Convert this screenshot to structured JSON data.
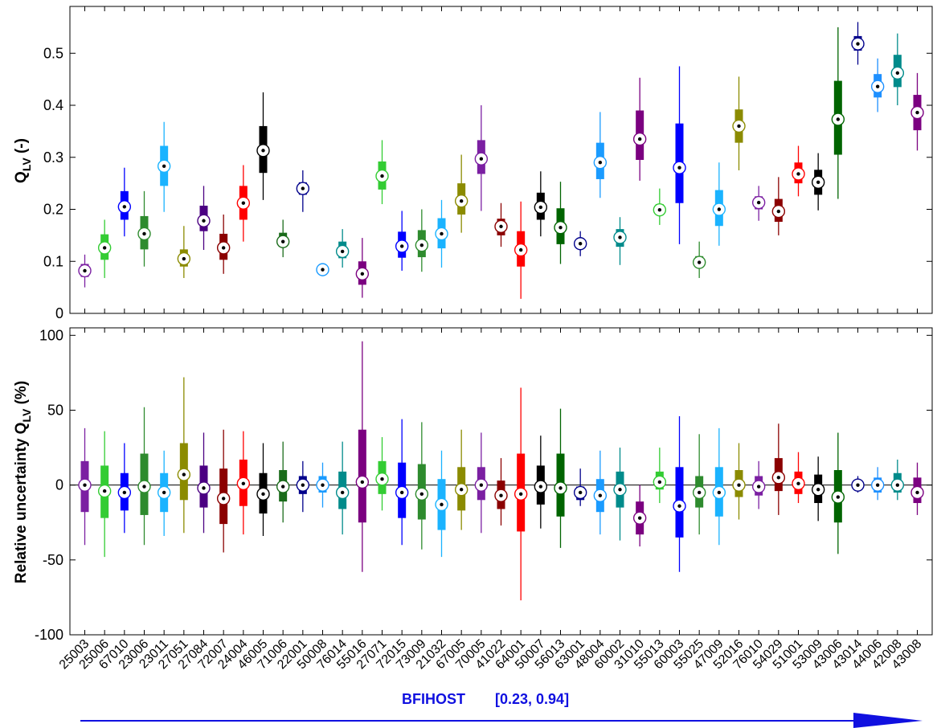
{
  "chart_data": [
    {
      "type": "box",
      "ylabel_main": "Q",
      "ylabel_sub": "LV",
      "ylabel_suffix": " (-)",
      "ylim": [
        0,
        0.59
      ],
      "yticks": [
        0,
        0.1,
        0.2,
        0.3,
        0.4,
        0.5
      ],
      "ytick_labels": [
        "0",
        "0.1",
        "0.2",
        "0.3",
        "0.4",
        "0.5"
      ],
      "grid": false,
      "items": [
        {
          "w_lo": 0.05,
          "q1": 0.07,
          "med": 0.082,
          "q3": 0.095,
          "w_hi": 0.113
        },
        {
          "w_lo": 0.068,
          "q1": 0.103,
          "med": 0.126,
          "q3": 0.152,
          "w_hi": 0.18
        },
        {
          "w_lo": 0.148,
          "q1": 0.18,
          "med": 0.205,
          "q3": 0.235,
          "w_hi": 0.28
        },
        {
          "w_lo": 0.09,
          "q1": 0.123,
          "med": 0.153,
          "q3": 0.187,
          "w_hi": 0.235
        },
        {
          "w_lo": 0.195,
          "q1": 0.245,
          "med": 0.283,
          "q3": 0.322,
          "w_hi": 0.368
        },
        {
          "w_lo": 0.068,
          "q1": 0.09,
          "med": 0.105,
          "q3": 0.123,
          "w_hi": 0.168
        },
        {
          "w_lo": 0.122,
          "q1": 0.158,
          "med": 0.178,
          "q3": 0.207,
          "w_hi": 0.245
        },
        {
          "w_lo": 0.076,
          "q1": 0.103,
          "med": 0.126,
          "q3": 0.153,
          "w_hi": 0.19
        },
        {
          "w_lo": 0.138,
          "q1": 0.18,
          "med": 0.212,
          "q3": 0.245,
          "w_hi": 0.285
        },
        {
          "w_lo": 0.218,
          "q1": 0.27,
          "med": 0.313,
          "q3": 0.36,
          "w_hi": 0.425
        },
        {
          "w_lo": 0.108,
          "q1": 0.128,
          "med": 0.138,
          "q3": 0.155,
          "w_hi": 0.18
        },
        {
          "w_lo": 0.195,
          "q1": 0.228,
          "med": 0.24,
          "q3": 0.252,
          "w_hi": 0.275
        },
        {
          "w_lo": 0.076,
          "q1": 0.08,
          "med": 0.084,
          "q3": 0.088,
          "w_hi": 0.092
        },
        {
          "w_lo": 0.088,
          "q1": 0.106,
          "med": 0.119,
          "q3": 0.138,
          "w_hi": 0.162
        },
        {
          "w_lo": 0.03,
          "q1": 0.055,
          "med": 0.076,
          "q3": 0.1,
          "w_hi": 0.145
        },
        {
          "w_lo": 0.21,
          "q1": 0.238,
          "med": 0.264,
          "q3": 0.292,
          "w_hi": 0.333
        },
        {
          "w_lo": 0.082,
          "q1": 0.107,
          "med": 0.129,
          "q3": 0.157,
          "w_hi": 0.197
        },
        {
          "w_lo": 0.08,
          "q1": 0.108,
          "med": 0.131,
          "q3": 0.16,
          "w_hi": 0.2
        },
        {
          "w_lo": 0.088,
          "q1": 0.125,
          "med": 0.153,
          "q3": 0.183,
          "w_hi": 0.218
        },
        {
          "w_lo": 0.155,
          "q1": 0.19,
          "med": 0.216,
          "q3": 0.25,
          "w_hi": 0.305
        },
        {
          "w_lo": 0.197,
          "q1": 0.268,
          "med": 0.297,
          "q3": 0.333,
          "w_hi": 0.4
        },
        {
          "w_lo": 0.128,
          "q1": 0.15,
          "med": 0.167,
          "q3": 0.182,
          "w_hi": 0.212
        },
        {
          "w_lo": 0.028,
          "q1": 0.09,
          "med": 0.122,
          "q3": 0.158,
          "w_hi": 0.215
        },
        {
          "w_lo": 0.148,
          "q1": 0.18,
          "med": 0.204,
          "q3": 0.232,
          "w_hi": 0.273
        },
        {
          "w_lo": 0.095,
          "q1": 0.133,
          "med": 0.165,
          "q3": 0.202,
          "w_hi": 0.253
        },
        {
          "w_lo": 0.11,
          "q1": 0.125,
          "med": 0.134,
          "q3": 0.142,
          "w_hi": 0.158
        },
        {
          "w_lo": 0.222,
          "q1": 0.258,
          "med": 0.29,
          "q3": 0.328,
          "w_hi": 0.387
        },
        {
          "w_lo": 0.093,
          "q1": 0.128,
          "med": 0.146,
          "q3": 0.162,
          "w_hi": 0.185
        },
        {
          "w_lo": 0.255,
          "q1": 0.295,
          "med": 0.335,
          "q3": 0.39,
          "w_hi": 0.453
        },
        {
          "w_lo": 0.17,
          "q1": 0.19,
          "med": 0.199,
          "q3": 0.21,
          "w_hi": 0.24
        },
        {
          "w_lo": 0.133,
          "q1": 0.212,
          "med": 0.28,
          "q3": 0.365,
          "w_hi": 0.475
        },
        {
          "w_lo": 0.068,
          "q1": 0.09,
          "med": 0.098,
          "q3": 0.11,
          "w_hi": 0.138
        },
        {
          "w_lo": 0.13,
          "q1": 0.168,
          "med": 0.2,
          "q3": 0.237,
          "w_hi": 0.29
        },
        {
          "w_lo": 0.275,
          "q1": 0.328,
          "med": 0.36,
          "q3": 0.392,
          "w_hi": 0.455
        },
        {
          "w_lo": 0.178,
          "q1": 0.2,
          "med": 0.213,
          "q3": 0.225,
          "w_hi": 0.245
        },
        {
          "w_lo": 0.15,
          "q1": 0.176,
          "med": 0.196,
          "q3": 0.22,
          "w_hi": 0.262
        },
        {
          "w_lo": 0.225,
          "q1": 0.25,
          "med": 0.268,
          "q3": 0.29,
          "w_hi": 0.322
        },
        {
          "w_lo": 0.198,
          "q1": 0.228,
          "med": 0.252,
          "q3": 0.276,
          "w_hi": 0.308
        },
        {
          "w_lo": 0.22,
          "q1": 0.305,
          "med": 0.373,
          "q3": 0.447,
          "w_hi": 0.55
        },
        {
          "w_lo": 0.478,
          "q1": 0.505,
          "med": 0.518,
          "q3": 0.533,
          "w_hi": 0.56
        },
        {
          "w_lo": 0.387,
          "q1": 0.415,
          "med": 0.436,
          "q3": 0.46,
          "w_hi": 0.49
        },
        {
          "w_lo": 0.4,
          "q1": 0.435,
          "med": 0.462,
          "q3": 0.497,
          "w_hi": 0.538
        },
        {
          "w_lo": 0.313,
          "q1": 0.352,
          "med": 0.386,
          "q3": 0.42,
          "w_hi": 0.462
        }
      ]
    },
    {
      "type": "box",
      "ylabel_main": "Relative uncertainty Q",
      "ylabel_sub": "LV",
      "ylabel_suffix": " (%)",
      "ylim": [
        -100,
        105
      ],
      "yticks": [
        -100,
        -50,
        0,
        50,
        100
      ],
      "ytick_labels": [
        "-100",
        "-50",
        "0",
        "50",
        "100"
      ],
      "zero_line": true,
      "grid": false,
      "items": [
        {
          "w_lo": -40,
          "q1": -18,
          "med": 0,
          "q3": 16,
          "w_hi": 38
        },
        {
          "w_lo": -48,
          "q1": -22,
          "med": -4,
          "q3": 13,
          "w_hi": 36
        },
        {
          "w_lo": -32,
          "q1": -17,
          "med": -5,
          "q3": 8,
          "w_hi": 28
        },
        {
          "w_lo": -40,
          "q1": -20,
          "med": -1,
          "q3": 21,
          "w_hi": 52
        },
        {
          "w_lo": -34,
          "q1": -18,
          "med": -5,
          "q3": 8,
          "w_hi": 23
        },
        {
          "w_lo": -32,
          "q1": -10,
          "med": 7,
          "q3": 28,
          "w_hi": 72
        },
        {
          "w_lo": -32,
          "q1": -15,
          "med": -2,
          "q3": 13,
          "w_hi": 35
        },
        {
          "w_lo": -45,
          "q1": -26,
          "med": -9,
          "q3": 11,
          "w_hi": 37
        },
        {
          "w_lo": -33,
          "q1": -14,
          "med": 1,
          "q3": 17,
          "w_hi": 36
        },
        {
          "w_lo": -34,
          "q1": -19,
          "med": -6,
          "q3": 8,
          "w_hi": 28
        },
        {
          "w_lo": -25,
          "q1": -11,
          "med": -1,
          "q3": 10,
          "w_hi": 29
        },
        {
          "w_lo": -18,
          "q1": -6,
          "med": 0,
          "q3": 6,
          "w_hi": 16
        },
        {
          "w_lo": -15,
          "q1": -5,
          "med": 0,
          "q3": 6,
          "w_hi": 15
        },
        {
          "w_lo": -33,
          "q1": -16,
          "med": -5,
          "q3": 9,
          "w_hi": 29
        },
        {
          "w_lo": -58,
          "q1": -25,
          "med": 2,
          "q3": 37,
          "w_hi": 96
        },
        {
          "w_lo": -17,
          "q1": -6,
          "med": 4,
          "q3": 16,
          "w_hi": 32
        },
        {
          "w_lo": -40,
          "q1": -22,
          "med": -5,
          "q3": 15,
          "w_hi": 44
        },
        {
          "w_lo": -43,
          "q1": -23,
          "med": -6,
          "q3": 14,
          "w_hi": 42
        },
        {
          "w_lo": -48,
          "q1": -30,
          "med": -13,
          "q3": 4,
          "w_hi": 23
        },
        {
          "w_lo": -30,
          "q1": -17,
          "med": -3,
          "q3": 12,
          "w_hi": 37
        },
        {
          "w_lo": -32,
          "q1": -10,
          "med": 0,
          "q3": 12,
          "w_hi": 35
        },
        {
          "w_lo": -27,
          "q1": -16,
          "med": -7,
          "q3": 3,
          "w_hi": 18
        },
        {
          "w_lo": -77,
          "q1": -31,
          "med": -6,
          "q3": 21,
          "w_hi": 65
        },
        {
          "w_lo": -29,
          "q1": -13,
          "med": -1,
          "q3": 13,
          "w_hi": 33
        },
        {
          "w_lo": -42,
          "q1": -21,
          "med": -2,
          "q3": 21,
          "w_hi": 51
        },
        {
          "w_lo": -14,
          "q1": -10,
          "med": -5,
          "q3": -1,
          "w_hi": 11
        },
        {
          "w_lo": -33,
          "q1": -18,
          "med": -7,
          "q3": 4,
          "w_hi": 23
        },
        {
          "w_lo": -37,
          "q1": -15,
          "med": -3,
          "q3": 9,
          "w_hi": 25
        },
        {
          "w_lo": -41,
          "q1": -33,
          "med": -22,
          "q3": -11,
          "w_hi": 0
        },
        {
          "w_lo": -12,
          "q1": -3,
          "med": 2,
          "q3": 9,
          "w_hi": 25
        },
        {
          "w_lo": -58,
          "q1": -35,
          "med": -14,
          "q3": 12,
          "w_hi": 46
        },
        {
          "w_lo": -33,
          "q1": -15,
          "med": -5,
          "q3": 6,
          "w_hi": 34
        },
        {
          "w_lo": -40,
          "q1": -21,
          "med": -5,
          "q3": 12,
          "w_hi": 38
        },
        {
          "w_lo": -23,
          "q1": -8,
          "med": 0,
          "q3": 10,
          "w_hi": 28
        },
        {
          "w_lo": -16,
          "q1": -7,
          "med": -1,
          "q3": 6,
          "w_hi": 16
        },
        {
          "w_lo": -20,
          "q1": -4,
          "med": 5,
          "q3": 18,
          "w_hi": 41
        },
        {
          "w_lo": -12,
          "q1": -6,
          "med": 1,
          "q3": 9,
          "w_hi": 22
        },
        {
          "w_lo": -24,
          "q1": -12,
          "med": -3,
          "q3": 7,
          "w_hi": 19
        },
        {
          "w_lo": -46,
          "q1": -25,
          "med": -8,
          "q3": 10,
          "w_hi": 35
        },
        {
          "w_lo": -5,
          "q1": -2,
          "med": 0,
          "q3": 2,
          "w_hi": 6
        },
        {
          "w_lo": -10,
          "q1": -5,
          "med": 0,
          "q3": 5,
          "w_hi": 12
        },
        {
          "w_lo": -10,
          "q1": -5,
          "med": 0,
          "q3": 8,
          "w_hi": 17
        },
        {
          "w_lo": -20,
          "q1": -12,
          "med": -5,
          "q3": 5,
          "w_hi": 15
        }
      ]
    }
  ],
  "categories": [
    "25003",
    "25006",
    "67010",
    "23006",
    "23011",
    "27051",
    "27084",
    "72007",
    "24004",
    "46005",
    "71006",
    "22001",
    "50008",
    "76014",
    "55016",
    "27071",
    "72015",
    "73009",
    "21032",
    "67005",
    "70005",
    "41022",
    "64001",
    "50007",
    "56013",
    "63001",
    "48004",
    "60002",
    "31010",
    "55013",
    "60003",
    "55025",
    "47009",
    "52016",
    "76010",
    "54029",
    "51001",
    "53009",
    "43006",
    "43014",
    "44006",
    "42008",
    "43008"
  ],
  "series_colors": [
    "#7b1fa2",
    "#33cc33",
    "#0000ff",
    "#2e8b2e",
    "#1ab3ff",
    "#8b8b00",
    "#4b0082",
    "#8b0000",
    "#ff0000",
    "#000000",
    "#1a6b1a",
    "#00008b",
    "#1a9bff",
    "#008b8b",
    "#7b0080",
    "#33cc33",
    "#0000ff",
    "#2e8b2e",
    "#1ab3ff",
    "#8b8b00",
    "#7b1fa2",
    "#8b0000",
    "#ff0000",
    "#000000",
    "#006400",
    "#00008b",
    "#1a9bff",
    "#008b8b",
    "#7b0080",
    "#33cc33",
    "#0000ff",
    "#2e8b2e",
    "#1ab3ff",
    "#8b8b00",
    "#7b1fa2",
    "#8b0000",
    "#ff0000",
    "#000000",
    "#006400",
    "#00008b",
    "#1e90ff",
    "#008b8b",
    "#7b0080"
  ],
  "xlabel_text": "BFIHOST",
  "xlabel_range": "[0.23, 0.94]",
  "arrow_color": "#1010e0"
}
